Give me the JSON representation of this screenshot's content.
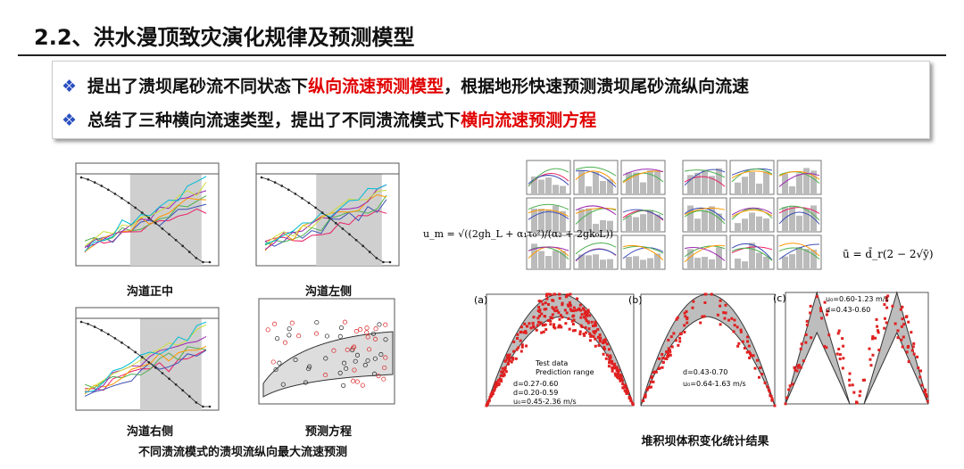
{
  "header": {
    "title": "2.2、洪水漫顶致灾演化规律及预测模型"
  },
  "bullets": [
    {
      "parts": [
        "提出了溃坝尾砂流不同状态下",
        "纵向流速预测模型",
        "，根据地形快速预测溃坝尾砂流纵向流速"
      ]
    },
    {
      "parts": [
        "总结了三种横向流速类型，提出了不同溃流模式下",
        "横向流速预测方程"
      ]
    }
  ],
  "left_figures": {
    "captions": [
      "沟道正中",
      "沟道左侧",
      "沟道右侧",
      "预测方程"
    ],
    "main_caption": "不同溃流模式的溃坝流纵向最大流速预测"
  },
  "right_figures": {
    "formula_left": "u_m = √((2gh_L + α₁τ₀²)/(α₂ + 2gk₀L))",
    "formula_right": "ū = d̄_r(2 − 2√ȳ)",
    "panels": [
      {
        "label": "(a)",
        "notes": [
          "Test data",
          "Prediction range",
          "d=0.27-0.60",
          "d=0.20-0.59",
          "u₀=0.45-2.36 m/s"
        ]
      },
      {
        "label": "(b)",
        "notes": [
          "d=0.43-0.70",
          "u₀=0.64-1.63 m/s"
        ]
      },
      {
        "label": "(c)",
        "notes": [
          "u₀=0.60-1.23 m/s",
          "d=0.43-0.60"
        ]
      }
    ],
    "caption": "堆积坝体积变化统计结果"
  }
}
